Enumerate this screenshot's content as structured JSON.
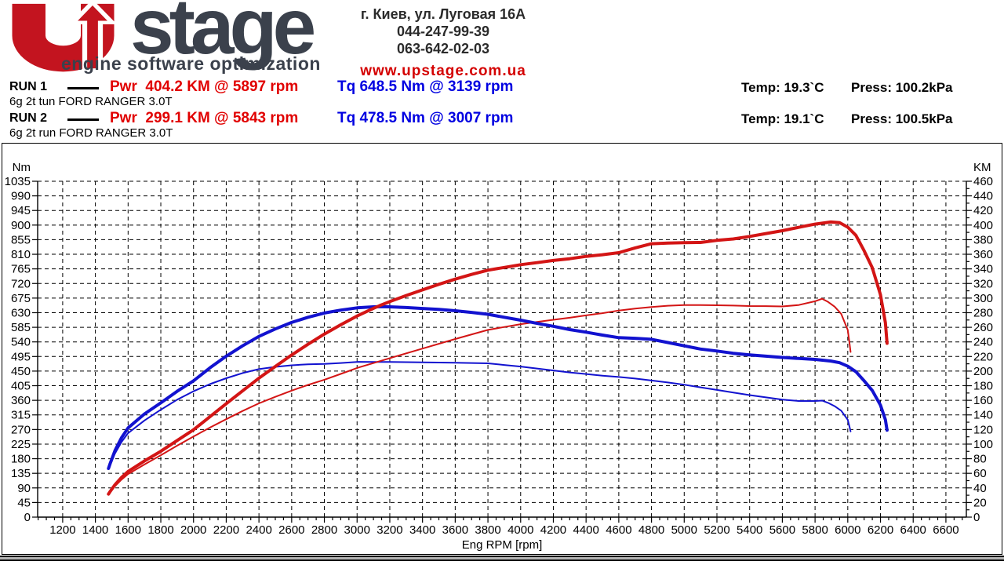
{
  "logo": {
    "u": "U",
    "rest": "stage",
    "tagline": "engine software optimization",
    "red": "#c3141f",
    "dark": "#3b414c"
  },
  "contact": {
    "address": "г. Киев, ул. Луговая 16А",
    "phone1": "044-247-99-39",
    "phone2": "063-642-02-03",
    "website": "www.upstage.com.ua"
  },
  "runs": [
    {
      "label": "RUN 1",
      "pwr": "Pwr  404.2 KM @ 5897 rpm",
      "tq": "Tq 648.5 Nm @ 3139 rpm",
      "vehicle": "6g 2t tun FORD RANGER 3.0T",
      "temp": "Temp: 19.3`C",
      "press": "Press: 100.2kPa"
    },
    {
      "label": "RUN 2",
      "pwr": "Pwr  299.1 KM @ 5843 rpm",
      "tq": "Tq 478.5 Nm @ 3007 rpm",
      "vehicle": "6g 2t run FORD RANGER 3.0T",
      "temp": "Temp: 19.1`C",
      "press": "Press: 100.5kPa"
    }
  ],
  "colors": {
    "torque_blue": "#1212cf",
    "power_red": "#d31515",
    "grid": "#000000"
  },
  "chart_data": {
    "type": "line",
    "xlabel": "Eng RPM [rpm]",
    "grid": "dashed",
    "x_axis": {
      "min": 1047,
      "max": 6725,
      "tick_min": 1200,
      "tick_max": 6600,
      "tick_step": 200,
      "minor_step": 50
    },
    "left_axis": {
      "title": "Nm",
      "min": 0,
      "max": 1035,
      "step": 45
    },
    "right_axis": {
      "title": "KM",
      "min": 0,
      "max": 460,
      "step": 20,
      "minor_step": 10
    },
    "series": [
      {
        "name": "RUN 1 torque",
        "unit": "Nm",
        "axis": "left",
        "color": "#1212cf",
        "width": 4,
        "z": 3,
        "peak": {
          "value": 648.5,
          "rpm": 3139
        },
        "points": [
          [
            1480,
            150
          ],
          [
            1490,
            165
          ],
          [
            1520,
            205
          ],
          [
            1560,
            245
          ],
          [
            1600,
            275
          ],
          [
            1700,
            318
          ],
          [
            1800,
            352
          ],
          [
            1900,
            388
          ],
          [
            2000,
            420
          ],
          [
            2100,
            460
          ],
          [
            2200,
            496
          ],
          [
            2300,
            528
          ],
          [
            2400,
            557
          ],
          [
            2500,
            580
          ],
          [
            2600,
            600
          ],
          [
            2700,
            616
          ],
          [
            2800,
            629
          ],
          [
            2900,
            638
          ],
          [
            3000,
            645
          ],
          [
            3100,
            648
          ],
          [
            3139,
            648.5
          ],
          [
            3200,
            648
          ],
          [
            3300,
            646
          ],
          [
            3400,
            643
          ],
          [
            3500,
            640
          ],
          [
            3600,
            636
          ],
          [
            3700,
            631
          ],
          [
            3800,
            625
          ],
          [
            3900,
            616
          ],
          [
            4000,
            607
          ],
          [
            4100,
            597
          ],
          [
            4200,
            588
          ],
          [
            4300,
            578
          ],
          [
            4400,
            570
          ],
          [
            4500,
            561
          ],
          [
            4600,
            553
          ],
          [
            4700,
            551
          ],
          [
            4800,
            548
          ],
          [
            4900,
            538
          ],
          [
            5000,
            528
          ],
          [
            5100,
            518
          ],
          [
            5200,
            512
          ],
          [
            5300,
            505
          ],
          [
            5400,
            500
          ],
          [
            5500,
            496
          ],
          [
            5600,
            492
          ],
          [
            5700,
            489
          ],
          [
            5800,
            486
          ],
          [
            5897,
            481
          ],
          [
            5950,
            476
          ],
          [
            6000,
            465
          ],
          [
            6050,
            448
          ],
          [
            6100,
            420
          ],
          [
            6150,
            390
          ],
          [
            6200,
            345
          ],
          [
            6230,
            300
          ],
          [
            6240,
            268
          ]
        ]
      },
      {
        "name": "RUN 1 power",
        "unit": "KM",
        "axis": "right",
        "color": "#d31515",
        "width": 4,
        "z": 4,
        "peak": {
          "value": 404.2,
          "rpm": 5897
        },
        "points": [
          [
            1480,
            31.6
          ],
          [
            1490,
            35.0
          ],
          [
            1520,
            44.4
          ],
          [
            1560,
            54.4
          ],
          [
            1600,
            62.6
          ],
          [
            1700,
            77.0
          ],
          [
            1800,
            90.2
          ],
          [
            1900,
            105.0
          ],
          [
            2000,
            119.6
          ],
          [
            2100,
            137.5
          ],
          [
            2200,
            155.4
          ],
          [
            2300,
            172.9
          ],
          [
            2400,
            190.3
          ],
          [
            2500,
            206.4
          ],
          [
            2600,
            222.1
          ],
          [
            2700,
            236.8
          ],
          [
            2800,
            250.7
          ],
          [
            2900,
            263.4
          ],
          [
            3000,
            275.5
          ],
          [
            3100,
            286.0
          ],
          [
            3139,
            289.8
          ],
          [
            3200,
            295.2
          ],
          [
            3300,
            303.5
          ],
          [
            3400,
            311.3
          ],
          [
            3500,
            318.9
          ],
          [
            3600,
            326.0
          ],
          [
            3700,
            332.4
          ],
          [
            3800,
            338.2
          ],
          [
            3900,
            342.0
          ],
          [
            4000,
            345.7
          ],
          [
            4100,
            348.5
          ],
          [
            4200,
            351.6
          ],
          [
            4300,
            353.9
          ],
          [
            4400,
            357.1
          ],
          [
            4500,
            359.4
          ],
          [
            4600,
            362.2
          ],
          [
            4700,
            368.7
          ],
          [
            4800,
            374.5
          ],
          [
            4900,
            375.3
          ],
          [
            5000,
            375.9
          ],
          [
            5100,
            376.2
          ],
          [
            5200,
            379.1
          ],
          [
            5300,
            381.0
          ],
          [
            5400,
            384.4
          ],
          [
            5500,
            388.4
          ],
          [
            5600,
            392.3
          ],
          [
            5700,
            396.9
          ],
          [
            5800,
            401.3
          ],
          [
            5897,
            404.2
          ],
          [
            5950,
            403.2
          ],
          [
            6000,
            397.1
          ],
          [
            6050,
            385.9
          ],
          [
            6100,
            364.8
          ],
          [
            6150,
            341.5
          ],
          [
            6200,
            304.6
          ],
          [
            6230,
            266.1
          ],
          [
            6240,
            238.1
          ]
        ]
      },
      {
        "name": "RUN 2 torque",
        "unit": "Nm",
        "axis": "left",
        "color": "#1212cf",
        "width": 2,
        "z": 1,
        "peak": {
          "value": 478.5,
          "rpm": 3007
        },
        "points": [
          [
            1480,
            148
          ],
          [
            1490,
            160
          ],
          [
            1520,
            196
          ],
          [
            1560,
            232
          ],
          [
            1600,
            259
          ],
          [
            1700,
            298
          ],
          [
            1800,
            331
          ],
          [
            1900,
            362
          ],
          [
            2000,
            388
          ],
          [
            2100,
            410
          ],
          [
            2200,
            428
          ],
          [
            2300,
            444
          ],
          [
            2400,
            456
          ],
          [
            2500,
            463
          ],
          [
            2600,
            468
          ],
          [
            2700,
            471
          ],
          [
            2800,
            472
          ],
          [
            2900,
            475
          ],
          [
            3007,
            478.5
          ],
          [
            3100,
            478
          ],
          [
            3200,
            478
          ],
          [
            3400,
            477
          ],
          [
            3600,
            476
          ],
          [
            3800,
            474
          ],
          [
            3900,
            469
          ],
          [
            4000,
            464
          ],
          [
            4100,
            458
          ],
          [
            4200,
            452
          ],
          [
            4300,
            446
          ],
          [
            4400,
            441
          ],
          [
            4500,
            436
          ],
          [
            4600,
            432
          ],
          [
            4700,
            427
          ],
          [
            4800,
            421
          ],
          [
            4900,
            415
          ],
          [
            5000,
            408
          ],
          [
            5100,
            400
          ],
          [
            5200,
            392
          ],
          [
            5300,
            384
          ],
          [
            5400,
            376
          ],
          [
            5500,
            369
          ],
          [
            5600,
            362
          ],
          [
            5700,
            358
          ],
          [
            5800,
            358
          ],
          [
            5843,
            359
          ],
          [
            5880,
            352
          ],
          [
            5920,
            342
          ],
          [
            5960,
            328
          ],
          [
            6000,
            300
          ],
          [
            6010,
            280
          ],
          [
            6017,
            264
          ]
        ]
      },
      {
        "name": "RUN 2 power",
        "unit": "KM",
        "axis": "right",
        "color": "#d31515",
        "width": 2,
        "z": 2,
        "peak": {
          "value": 299.1,
          "rpm": 5843
        },
        "points": [
          [
            1480,
            31.2
          ],
          [
            1490,
            33.9
          ],
          [
            1520,
            42.4
          ],
          [
            1560,
            51.5
          ],
          [
            1600,
            59.0
          ],
          [
            1700,
            72.1
          ],
          [
            1800,
            84.8
          ],
          [
            1900,
            97.9
          ],
          [
            2000,
            110.5
          ],
          [
            2100,
            122.6
          ],
          [
            2200,
            134.1
          ],
          [
            2300,
            145.4
          ],
          [
            2400,
            155.8
          ],
          [
            2500,
            164.8
          ],
          [
            2600,
            173.2
          ],
          [
            2700,
            181.1
          ],
          [
            2800,
            188.2
          ],
          [
            2900,
            196.1
          ],
          [
            3007,
            204.9
          ],
          [
            3100,
            211.0
          ],
          [
            3200,
            217.8
          ],
          [
            3400,
            230.9
          ],
          [
            3600,
            244.0
          ],
          [
            3800,
            256.4
          ],
          [
            3900,
            260.4
          ],
          [
            4000,
            264.3
          ],
          [
            4100,
            267.3
          ],
          [
            4200,
            270.3
          ],
          [
            4300,
            273.1
          ],
          [
            4400,
            276.3
          ],
          [
            4500,
            279.3
          ],
          [
            4600,
            283.0
          ],
          [
            4700,
            285.7
          ],
          [
            4800,
            287.7
          ],
          [
            4900,
            289.5
          ],
          [
            5000,
            290.4
          ],
          [
            5100,
            290.5
          ],
          [
            5200,
            290.2
          ],
          [
            5300,
            289.8
          ],
          [
            5400,
            289.1
          ],
          [
            5500,
            289.0
          ],
          [
            5600,
            288.6
          ],
          [
            5700,
            290.5
          ],
          [
            5800,
            295.7
          ],
          [
            5843,
            299.1
          ],
          [
            5880,
            294.7
          ],
          [
            5920,
            288.3
          ],
          [
            5960,
            278.3
          ],
          [
            6000,
            256.3
          ],
          [
            6010,
            239.5
          ],
          [
            6017,
            226.2
          ]
        ]
      }
    ]
  }
}
